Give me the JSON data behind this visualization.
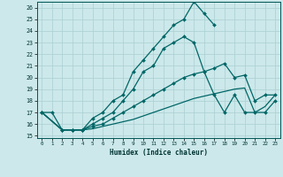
{
  "xlabel": "Humidex (Indice chaleur)",
  "bg_color": "#cce8ea",
  "grid_color": "#aacfd2",
  "line_color": "#006666",
  "xlim": [
    -0.5,
    23.5
  ],
  "ylim": [
    14.8,
    26.5
  ],
  "xticks": [
    0,
    1,
    2,
    3,
    4,
    5,
    6,
    7,
    8,
    9,
    10,
    11,
    12,
    13,
    14,
    15,
    16,
    17,
    18,
    19,
    20,
    21,
    22,
    23
  ],
  "yticks": [
    15,
    16,
    17,
    18,
    19,
    20,
    21,
    22,
    23,
    24,
    25,
    26
  ],
  "line1_x": [
    0,
    1,
    2,
    3,
    4,
    5,
    6,
    7,
    8,
    9,
    10,
    11,
    12,
    13,
    14,
    15,
    16,
    17
  ],
  "line1_y": [
    17,
    17,
    15.5,
    15.5,
    15.5,
    16.5,
    17,
    18,
    18.5,
    20.5,
    21.5,
    22.5,
    23.5,
    24.5,
    25,
    26.5,
    25.5,
    24.5
  ],
  "line2_x": [
    0,
    2,
    3,
    4,
    5,
    6,
    7,
    8,
    9,
    10,
    11,
    12,
    13,
    14,
    15,
    16,
    17,
    18,
    19,
    20,
    21,
    22,
    23
  ],
  "line2_y": [
    17,
    15.5,
    15.5,
    15.5,
    16,
    16.5,
    17,
    18,
    19,
    20.5,
    21,
    22.5,
    23,
    23.5,
    23,
    20.5,
    18.5,
    17,
    18.5,
    17,
    17,
    17,
    18
  ],
  "line3_x": [
    0,
    2,
    3,
    4,
    5,
    6,
    7,
    8,
    9,
    10,
    11,
    12,
    13,
    14,
    15,
    16,
    17,
    18,
    19,
    20,
    21,
    22,
    23
  ],
  "line3_y": [
    17,
    15.5,
    15.5,
    15.5,
    15.8,
    16,
    16.5,
    17,
    17.5,
    18,
    18.5,
    19,
    19.5,
    20,
    20.3,
    20.5,
    20.8,
    21.2,
    20,
    20.2,
    18,
    18.5,
    18.5
  ],
  "line4_x": [
    0,
    2,
    3,
    4,
    5,
    6,
    7,
    8,
    9,
    10,
    11,
    12,
    13,
    14,
    15,
    16,
    17,
    18,
    19,
    20,
    21,
    22,
    23
  ],
  "line4_y": [
    17,
    15.5,
    15.5,
    15.5,
    15.6,
    15.8,
    16,
    16.2,
    16.4,
    16.7,
    17,
    17.3,
    17.6,
    17.9,
    18.2,
    18.4,
    18.6,
    18.8,
    19,
    19.1,
    17,
    17.5,
    18.5
  ]
}
